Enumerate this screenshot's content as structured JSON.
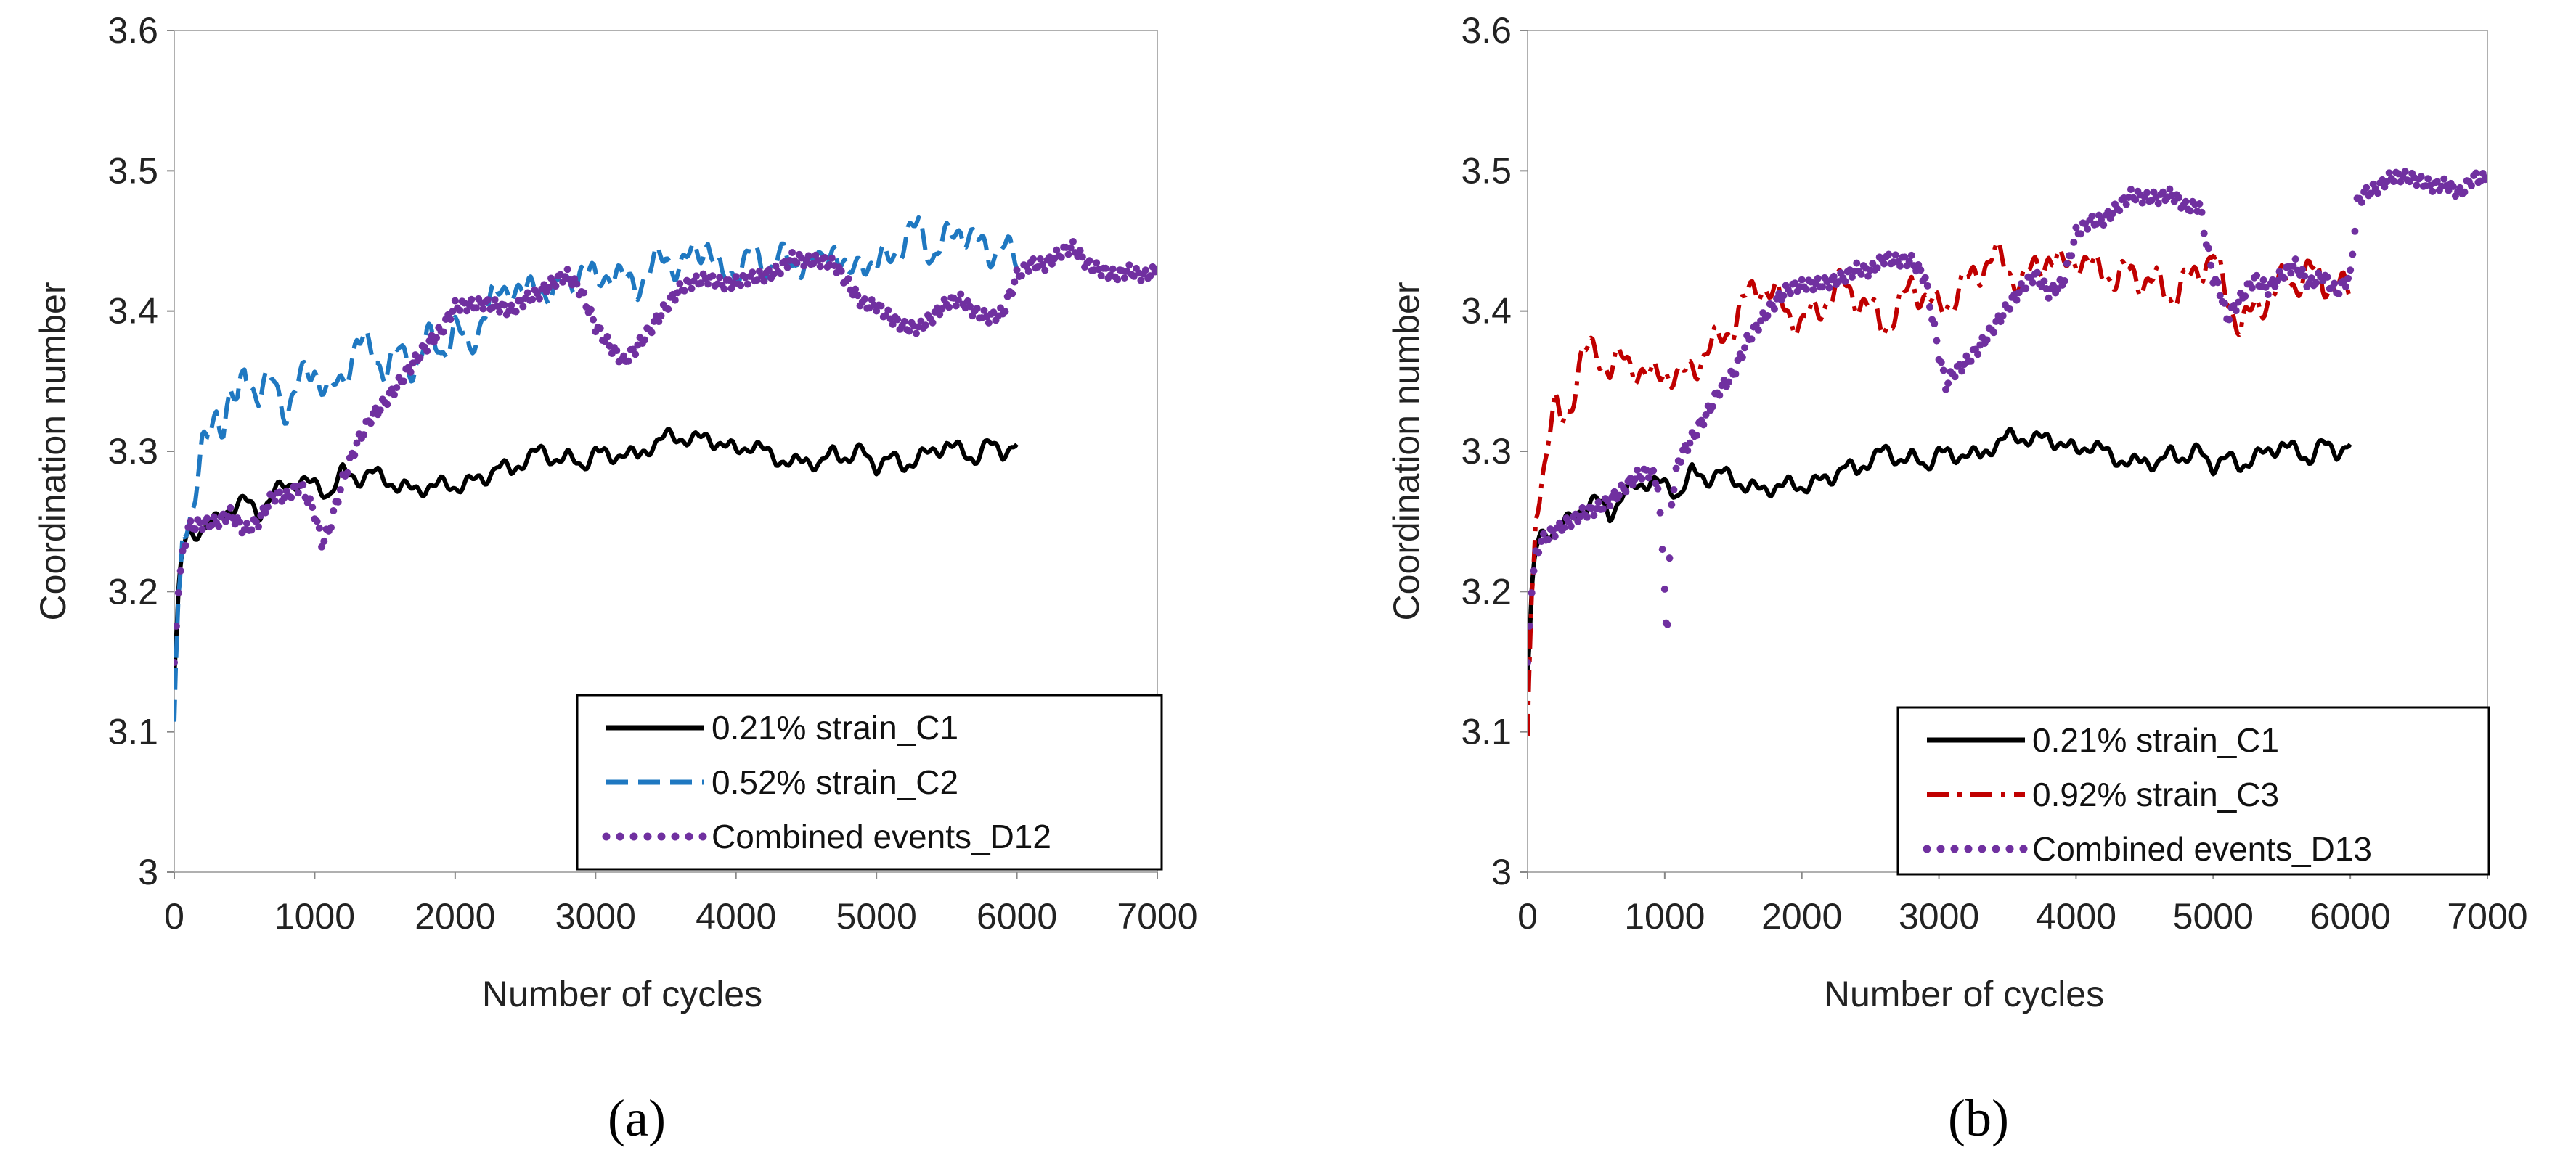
{
  "chart_data": [
    {
      "id": "a",
      "type": "line",
      "panel_label": "(a)",
      "xlabel": "Number of cycles",
      "ylabel": "Coordination number",
      "xlim": [
        0,
        7000
      ],
      "ylim": [
        3,
        3.6
      ],
      "xticks": [
        "0",
        "1000",
        "2000",
        "3000",
        "4000",
        "5000",
        "6000",
        "7000"
      ],
      "yticks": [
        "3",
        "3.1",
        "3.2",
        "3.3",
        "3.4",
        "3.5",
        "3.6"
      ],
      "legend_position": "bottom-right",
      "series": [
        {
          "name": "0.21% strain_C1",
          "style": "solid",
          "color": "#000000",
          "x": [
            0,
            30,
            60,
            100,
            200,
            300,
            400,
            500,
            600,
            700,
            800,
            900,
            1000,
            1100,
            1200,
            1300,
            1400,
            1500,
            1600,
            1700,
            1800,
            1900,
            2000,
            2100,
            2200,
            2300,
            2400,
            2500,
            2600,
            2700,
            2800,
            2900,
            3000,
            3100,
            3200,
            3300,
            3400,
            3500,
            3600,
            3700,
            3800,
            3900,
            4000,
            4100,
            4200,
            4300,
            4400,
            4500,
            4600,
            4700,
            4800,
            4900,
            5000,
            5100,
            5200,
            5300,
            5400,
            5500,
            5600,
            5700,
            5800,
            5900,
            6000
          ],
          "y": [
            3.14,
            3.2,
            3.23,
            3.24,
            3.245,
            3.25,
            3.26,
            3.265,
            3.255,
            3.27,
            3.275,
            3.28,
            3.275,
            3.27,
            3.285,
            3.28,
            3.285,
            3.28,
            3.275,
            3.272,
            3.275,
            3.276,
            3.275,
            3.278,
            3.28,
            3.29,
            3.285,
            3.295,
            3.3,
            3.295,
            3.295,
            3.29,
            3.3,
            3.295,
            3.3,
            3.295,
            3.305,
            3.31,
            3.31,
            3.308,
            3.31,
            3.305,
            3.3,
            3.305,
            3.3,
            3.295,
            3.29,
            3.295,
            3.29,
            3.3,
            3.295,
            3.3,
            3.29,
            3.295,
            3.29,
            3.295,
            3.3,
            3.305,
            3.3,
            3.295,
            3.305,
            3.3,
            3.305
          ]
        },
        {
          "name": "0.52% strain_C2",
          "style": "dashed",
          "color": "#1f78c1",
          "x": [
            0,
            30,
            60,
            100,
            150,
            200,
            250,
            300,
            350,
            400,
            450,
            500,
            600,
            700,
            800,
            900,
            1000,
            1100,
            1200,
            1300,
            1400,
            1500,
            1600,
            1700,
            1800,
            1900,
            2000,
            2100,
            2200,
            2300,
            2400,
            2500,
            2600,
            2700,
            2800,
            2900,
            3000,
            3100,
            3200,
            3300,
            3400,
            3500,
            3600,
            3700,
            3800,
            3900,
            4000,
            4100,
            4200,
            4300,
            4400,
            4500,
            4600,
            4700,
            4800,
            4900,
            5000,
            5100,
            5200,
            5300,
            5400,
            5500,
            5600,
            5700,
            5800,
            5900,
            6000
          ],
          "y": [
            3.1,
            3.2,
            3.24,
            3.25,
            3.27,
            3.3,
            3.31,
            3.33,
            3.32,
            3.34,
            3.33,
            3.36,
            3.34,
            3.35,
            3.33,
            3.35,
            3.36,
            3.34,
            3.35,
            3.38,
            3.37,
            3.36,
            3.37,
            3.36,
            3.38,
            3.37,
            3.39,
            3.37,
            3.4,
            3.41,
            3.42,
            3.41,
            3.42,
            3.41,
            3.42,
            3.43,
            3.42,
            3.43,
            3.42,
            3.42,
            3.43,
            3.44,
            3.43,
            3.44,
            3.45,
            3.42,
            3.43,
            3.44,
            3.43,
            3.44,
            3.43,
            3.44,
            3.43,
            3.45,
            3.42,
            3.44,
            3.43,
            3.44,
            3.45,
            3.46,
            3.44,
            3.45,
            3.46,
            3.45,
            3.44,
            3.45,
            3.43
          ]
        },
        {
          "name": "Combined events_D12",
          "style": "dotted",
          "color": "#7030a0",
          "x": [
            0,
            30,
            60,
            100,
            200,
            300,
            400,
            500,
            600,
            700,
            800,
            900,
            1000,
            1050,
            1100,
            1150,
            1200,
            1300,
            1400,
            1500,
            1600,
            1700,
            1800,
            1900,
            2000,
            2100,
            2200,
            2300,
            2400,
            2500,
            2600,
            2700,
            2800,
            2900,
            3000,
            3100,
            3200,
            3300,
            3400,
            3500,
            3600,
            3700,
            3800,
            3900,
            4000,
            4100,
            4200,
            4300,
            4400,
            4500,
            4600,
            4700,
            4800,
            4900,
            5000,
            5100,
            5200,
            5300,
            5400,
            5500,
            5600,
            5700,
            5800,
            5900,
            6000,
            6100,
            6200,
            6300,
            6400,
            6500,
            6600,
            6700,
            6800,
            6900,
            7000
          ],
          "y": [
            3.14,
            3.2,
            3.23,
            3.24,
            3.245,
            3.25,
            3.26,
            3.25,
            3.255,
            3.27,
            3.265,
            3.27,
            3.25,
            3.23,
            3.24,
            3.26,
            3.28,
            3.31,
            3.33,
            3.34,
            3.35,
            3.36,
            3.37,
            3.38,
            3.4,
            3.405,
            3.41,
            3.41,
            3.405,
            3.41,
            3.41,
            3.415,
            3.42,
            3.41,
            3.39,
            3.38,
            3.37,
            3.38,
            3.39,
            3.4,
            3.41,
            3.415,
            3.42,
            3.42,
            3.425,
            3.43,
            3.43,
            3.43,
            3.435,
            3.43,
            3.43,
            3.43,
            3.42,
            3.41,
            3.41,
            3.4,
            3.39,
            3.385,
            3.39,
            3.4,
            3.405,
            3.4,
            3.4,
            3.405,
            3.43,
            3.435,
            3.43,
            3.435,
            3.44,
            3.43,
            3.43,
            3.43,
            3.435,
            3.43,
            3.43
          ]
        }
      ]
    },
    {
      "id": "b",
      "type": "line",
      "panel_label": "(b)",
      "xlabel": "Number of cycles",
      "ylabel": "Coordination number",
      "xlim": [
        0,
        7000
      ],
      "ylim": [
        3,
        3.6
      ],
      "xticks": [
        "0",
        "1000",
        "2000",
        "3000",
        "4000",
        "5000",
        "6000",
        "7000"
      ],
      "yticks": [
        "3",
        "3.1",
        "3.2",
        "3.3",
        "3.4",
        "3.5",
        "3.6"
      ],
      "legend_position": "bottom-right",
      "series": [
        {
          "name": "0.21% strain_C1",
          "style": "solid",
          "color": "#000000",
          "x": [
            0,
            30,
            60,
            100,
            200,
            300,
            400,
            500,
            600,
            700,
            800,
            900,
            1000,
            1100,
            1200,
            1300,
            1400,
            1500,
            1600,
            1700,
            1800,
            1900,
            2000,
            2100,
            2200,
            2300,
            2400,
            2500,
            2600,
            2700,
            2800,
            2900,
            3000,
            3100,
            3200,
            3300,
            3400,
            3500,
            3600,
            3700,
            3800,
            3900,
            4000,
            4100,
            4200,
            4300,
            4400,
            4500,
            4600,
            4700,
            4800,
            4900,
            5000,
            5100,
            5200,
            5300,
            5400,
            5500,
            5600,
            5700,
            5800,
            5900,
            6000
          ],
          "y": [
            3.14,
            3.2,
            3.23,
            3.24,
            3.245,
            3.25,
            3.26,
            3.265,
            3.255,
            3.27,
            3.275,
            3.28,
            3.275,
            3.27,
            3.285,
            3.28,
            3.285,
            3.28,
            3.275,
            3.272,
            3.275,
            3.276,
            3.275,
            3.278,
            3.28,
            3.29,
            3.285,
            3.295,
            3.3,
            3.295,
            3.295,
            3.29,
            3.3,
            3.295,
            3.3,
            3.295,
            3.305,
            3.31,
            3.31,
            3.308,
            3.31,
            3.305,
            3.3,
            3.305,
            3.3,
            3.295,
            3.29,
            3.295,
            3.29,
            3.3,
            3.295,
            3.3,
            3.29,
            3.295,
            3.29,
            3.295,
            3.3,
            3.305,
            3.3,
            3.295,
            3.305,
            3.3,
            3.305
          ]
        },
        {
          "name": "0.92% strain_C3",
          "style": "dashdot",
          "color": "#c00000",
          "x": [
            0,
            30,
            60,
            100,
            150,
            200,
            250,
            300,
            350,
            400,
            500,
            600,
            700,
            800,
            900,
            1000,
            1100,
            1200,
            1300,
            1400,
            1500,
            1600,
            1700,
            1800,
            1900,
            2000,
            2100,
            2200,
            2300,
            2400,
            2500,
            2600,
            2700,
            2800,
            2900,
            3000,
            3100,
            3200,
            3300,
            3400,
            3500,
            3600,
            3700,
            3800,
            3900,
            4000,
            4100,
            4200,
            4300,
            4400,
            4500,
            4600,
            4700,
            4800,
            4900,
            5000,
            5100,
            5200,
            5300,
            5400,
            5500,
            5600,
            5700,
            5800,
            5900,
            6000
          ],
          "y": [
            3.09,
            3.2,
            3.25,
            3.28,
            3.31,
            3.33,
            3.32,
            3.33,
            3.35,
            3.37,
            3.37,
            3.36,
            3.365,
            3.36,
            3.35,
            3.36,
            3.35,
            3.36,
            3.37,
            3.38,
            3.39,
            3.41,
            3.42,
            3.41,
            3.4,
            3.39,
            3.4,
            3.41,
            3.42,
            3.41,
            3.4,
            3.39,
            3.4,
            3.42,
            3.41,
            3.4,
            3.41,
            3.42,
            3.43,
            3.44,
            3.43,
            3.42,
            3.43,
            3.44,
            3.43,
            3.44,
            3.43,
            3.43,
            3.42,
            3.43,
            3.42,
            3.42,
            3.41,
            3.42,
            3.43,
            3.44,
            3.41,
            3.39,
            3.4,
            3.41,
            3.42,
            3.42,
            3.43,
            3.42,
            3.42,
            3.41
          ]
        },
        {
          "name": "Combined events_D13",
          "style": "dotted",
          "color": "#7030a0",
          "x": [
            0,
            30,
            60,
            100,
            200,
            300,
            400,
            500,
            600,
            700,
            800,
            900,
            950,
            1000,
            1020,
            1050,
            1100,
            1200,
            1300,
            1400,
            1500,
            1600,
            1700,
            1800,
            1900,
            2000,
            2100,
            2200,
            2300,
            2400,
            2500,
            2600,
            2700,
            2800,
            2900,
            3000,
            3050,
            3100,
            3200,
            3300,
            3400,
            3500,
            3600,
            3700,
            3800,
            3900,
            4000,
            4100,
            4200,
            4300,
            4400,
            4500,
            4600,
            4700,
            4800,
            4900,
            5000,
            5050,
            5100,
            5200,
            5300,
            5400,
            5500,
            5600,
            5700,
            5800,
            5900,
            6000,
            6050,
            6100,
            6200,
            6300,
            6400,
            6500,
            6600,
            6700,
            6800,
            6900,
            7000
          ],
          "y": [
            3.14,
            3.2,
            3.23,
            3.23,
            3.24,
            3.25,
            3.26,
            3.265,
            3.27,
            3.275,
            3.28,
            3.28,
            3.27,
            3.2,
            3.17,
            3.26,
            3.29,
            3.31,
            3.33,
            3.35,
            3.36,
            3.38,
            3.39,
            3.4,
            3.41,
            3.415,
            3.42,
            3.425,
            3.43,
            3.435,
            3.43,
            3.435,
            3.43,
            3.43,
            3.42,
            3.37,
            3.35,
            3.36,
            3.37,
            3.38,
            3.39,
            3.4,
            3.41,
            3.42,
            3.41,
            3.42,
            3.46,
            3.47,
            3.47,
            3.475,
            3.48,
            3.475,
            3.475,
            3.48,
            3.475,
            3.48,
            3.43,
            3.42,
            3.4,
            3.41,
            3.42,
            3.41,
            3.42,
            3.43,
            3.42,
            3.43,
            3.42,
            3.43,
            3.48,
            3.485,
            3.485,
            3.49,
            3.49,
            3.49,
            3.49,
            3.495,
            3.49,
            3.5,
            3.495
          ]
        }
      ]
    }
  ]
}
